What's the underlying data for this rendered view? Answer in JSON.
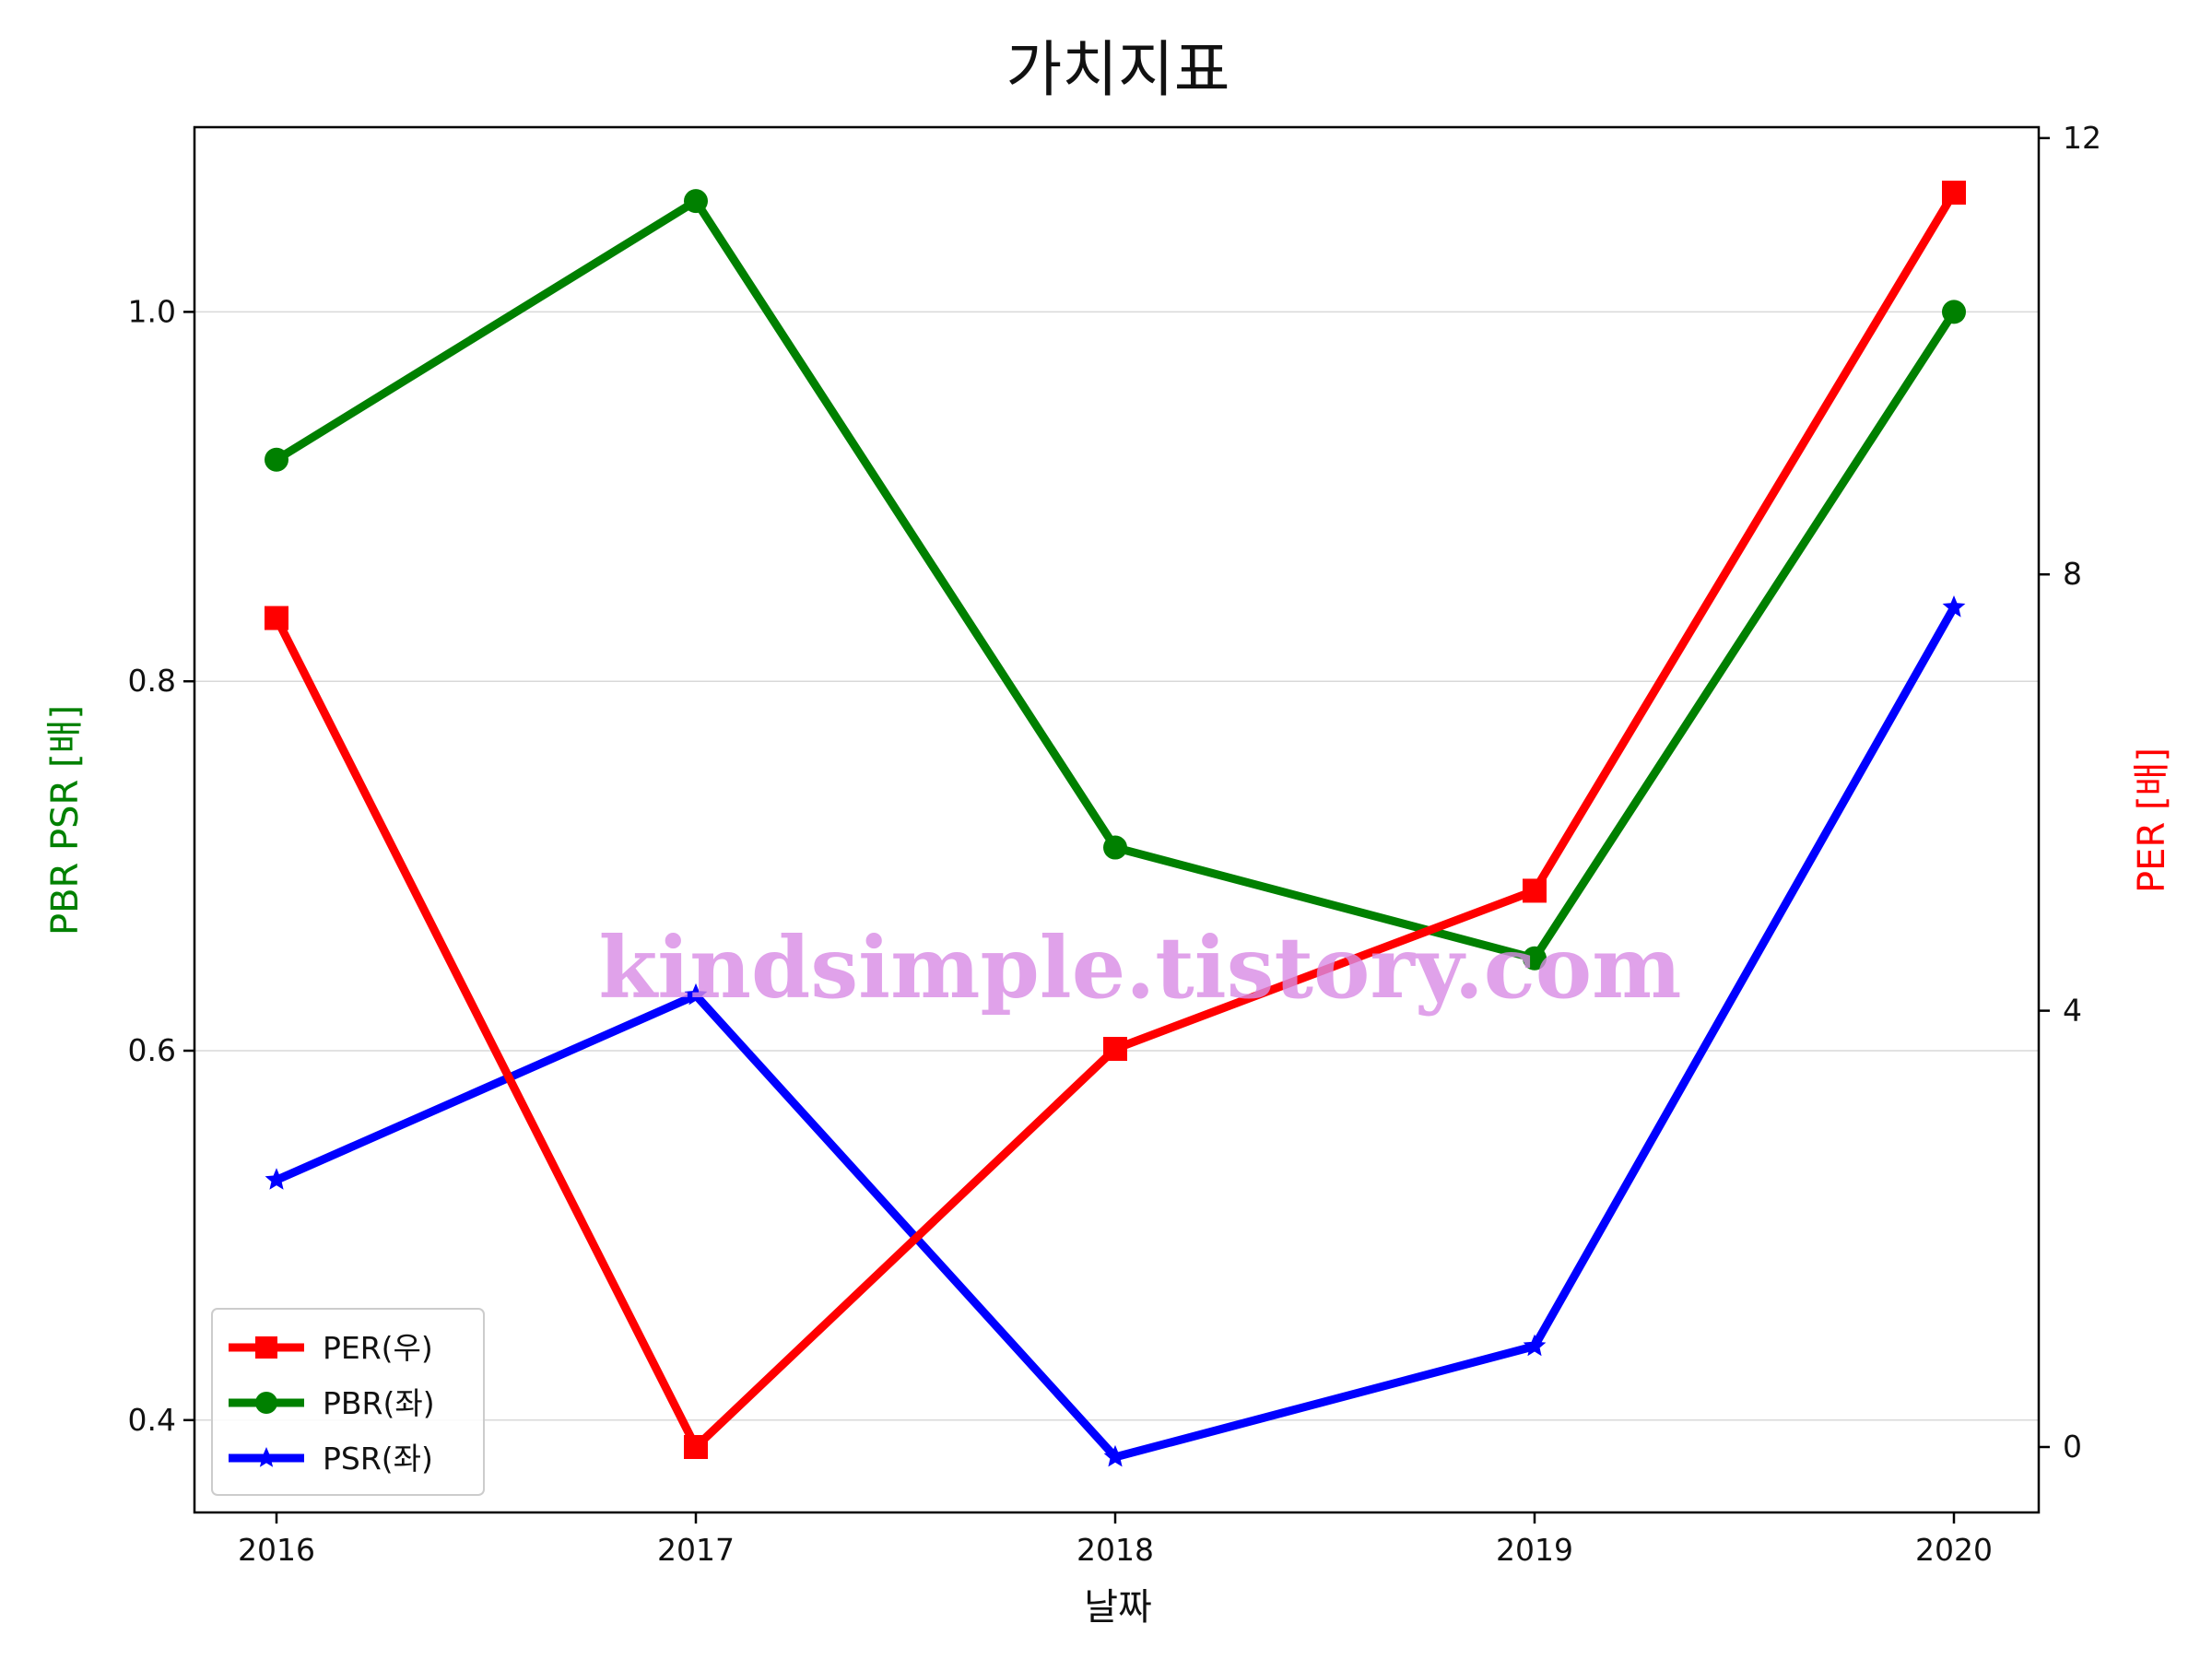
{
  "chart_data": {
    "type": "line",
    "title": "가치지표",
    "xlabel": "날짜",
    "ylabel_left": "PBR PSR [배]",
    "ylabel_right": "PER [배]",
    "ylabel_left_color": "#008000",
    "ylabel_right_color": "#ff0000",
    "x": [
      "2016",
      "2017",
      "2018",
      "2019",
      "2020"
    ],
    "x_ticks": [
      "2016",
      "2017",
      "2018",
      "2019",
      "2020"
    ],
    "ylim_left": [
      0.35,
      1.1
    ],
    "yticks_left": [
      "0.4",
      "0.6",
      "0.8",
      "1.0"
    ],
    "ylim_right": [
      -0.6,
      12.1
    ],
    "yticks_right": [
      "0",
      "4",
      "8",
      "12"
    ],
    "grid": "horizontal (left axis)",
    "legend_position": "lower-left",
    "series": [
      {
        "name": "PER(우)",
        "axis": "right",
        "color": "#ff0000",
        "marker": "square",
        "values": [
          7.6,
          0.0,
          3.65,
          5.1,
          11.5
        ]
      },
      {
        "name": "PBR(좌)",
        "axis": "left",
        "color": "#008000",
        "marker": "circle",
        "values": [
          0.92,
          1.06,
          0.71,
          0.65,
          1.0
        ]
      },
      {
        "name": "PSR(좌)",
        "axis": "left",
        "color": "#0000ff",
        "marker": "star",
        "values": [
          0.53,
          0.63,
          0.38,
          0.44,
          0.84
        ]
      }
    ],
    "watermark": "kindsimple.tistory.com"
  }
}
